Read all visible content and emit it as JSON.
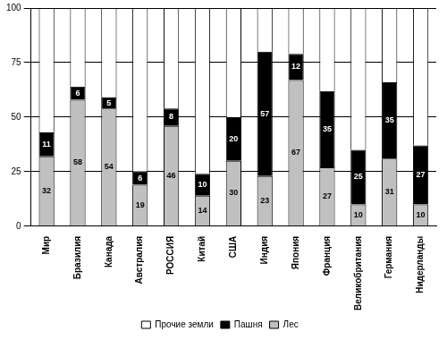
{
  "chart_data": {
    "type": "bar",
    "stacked": true,
    "categories": [
      "Мир",
      "Бразилия",
      "Канада",
      "Австралия",
      "РОССИЯ",
      "Китай",
      "США",
      "Индия",
      "Япония",
      "Франция",
      "Великобритания",
      "Германия",
      "Нидерланды"
    ],
    "series": [
      {
        "name": "Лес",
        "color": "#c0c0c0",
        "data_labels": true,
        "values": [
          32,
          58,
          54,
          19,
          46,
          14,
          30,
          23,
          67,
          27,
          10,
          31,
          10
        ]
      },
      {
        "name": "Пашня",
        "color": "#000000",
        "data_labels": true,
        "values": [
          11,
          6,
          5,
          6,
          8,
          10,
          20,
          57,
          12,
          35,
          25,
          35,
          27
        ]
      },
      {
        "name": "Прочие земли",
        "color": "#ffffff",
        "data_labels": false,
        "values": [
          57,
          36,
          41,
          75,
          46,
          76,
          50,
          20,
          21,
          38,
          65,
          34,
          63
        ]
      }
    ],
    "ylim": [
      0,
      100
    ],
    "yticks": [
      0,
      25,
      50,
      75,
      100
    ],
    "grid": true,
    "legend": "bottom"
  }
}
